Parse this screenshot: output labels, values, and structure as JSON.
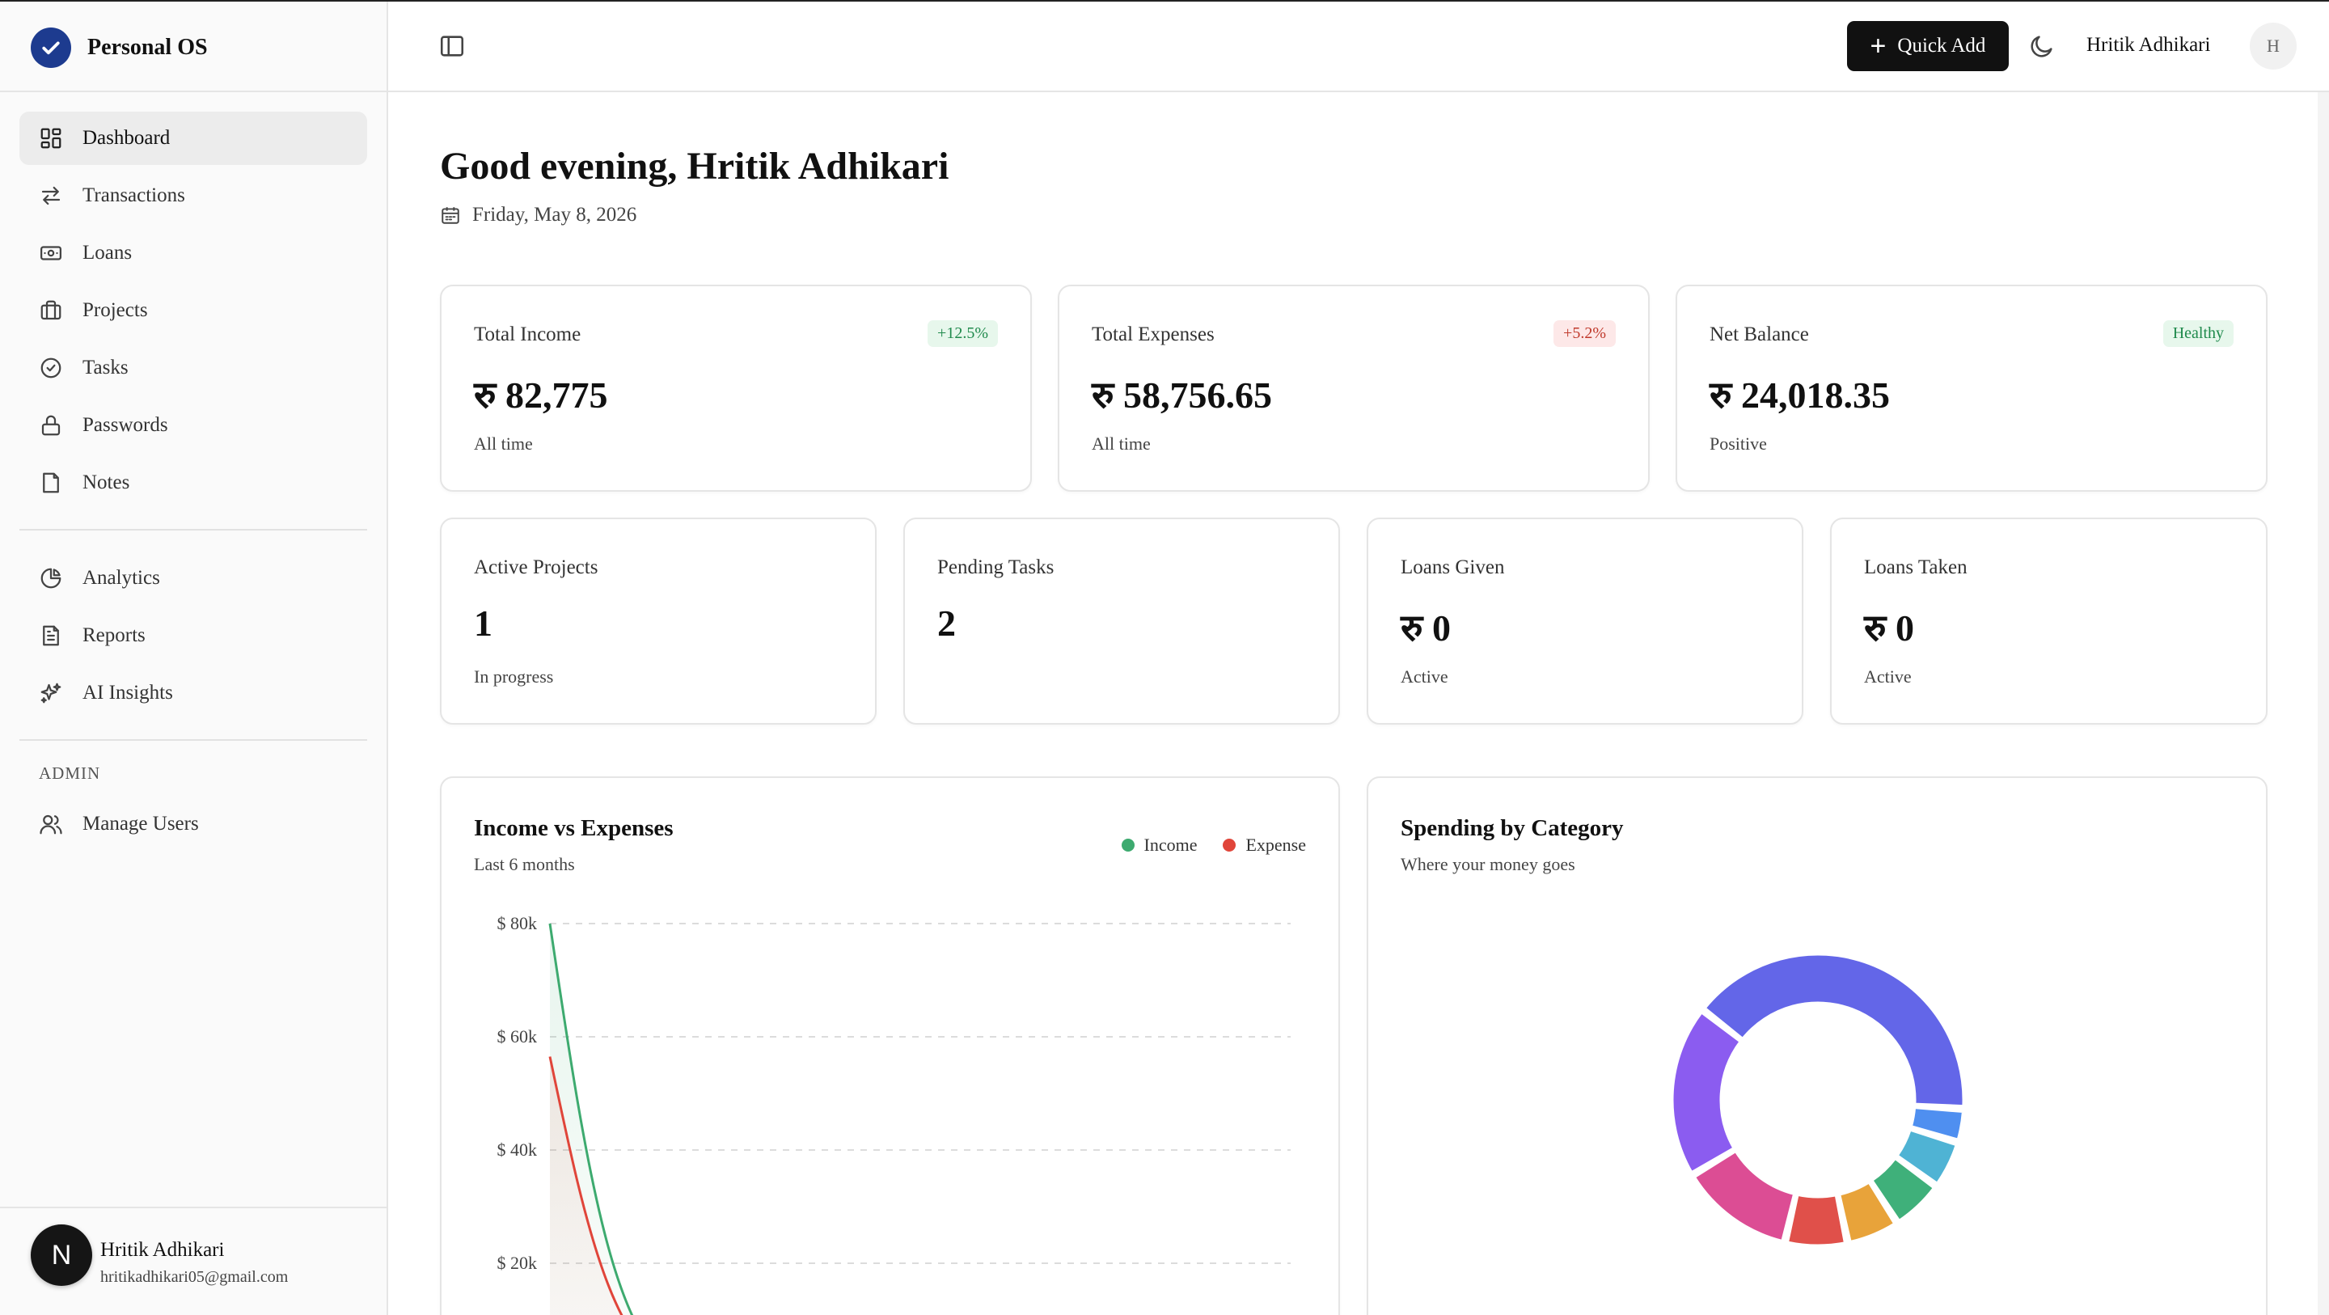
{
  "app": {
    "name": "Personal OS"
  },
  "sidebar": {
    "primary": [
      {
        "label": "Dashboard",
        "icon": "dashboard-icon",
        "active": true
      },
      {
        "label": "Transactions",
        "icon": "transactions-icon"
      },
      {
        "label": "Loans",
        "icon": "loans-icon"
      },
      {
        "label": "Projects",
        "icon": "projects-icon"
      },
      {
        "label": "Tasks",
        "icon": "tasks-icon"
      },
      {
        "label": "Passwords",
        "icon": "lock-icon"
      },
      {
        "label": "Notes",
        "icon": "notes-icon"
      }
    ],
    "secondary": [
      {
        "label": "Analytics",
        "icon": "pie-chart-icon"
      },
      {
        "label": "Reports",
        "icon": "report-icon"
      },
      {
        "label": "AI Insights",
        "icon": "sparkles-icon"
      }
    ],
    "admin_heading": "ADMIN",
    "admin": [
      {
        "label": "Manage Users",
        "icon": "users-icon"
      }
    ],
    "user": {
      "avatar_letter": "N",
      "name": "Hritik Adhikari",
      "email": "hritikadhikari05@gmail.com"
    }
  },
  "header": {
    "quick_add_label": "Quick Add",
    "user_name": "Hritik Adhikari",
    "avatar_letter": "H"
  },
  "main": {
    "greeting": "Good evening, Hritik Adhikari",
    "date": "Friday, May 8, 2026",
    "stats_top": [
      {
        "label": "Total Income",
        "value": "रु 82,775",
        "sub": "All time",
        "badge": "+12.5%",
        "badge_tone": "green"
      },
      {
        "label": "Total Expenses",
        "value": "रु 58,756.65",
        "sub": "All time",
        "badge": "+5.2%",
        "badge_tone": "red"
      },
      {
        "label": "Net Balance",
        "value": "रु 24,018.35",
        "sub": "Positive",
        "badge": "Healthy",
        "badge_tone": "green"
      }
    ],
    "stats_bottom": [
      {
        "label": "Active Projects",
        "value": "1",
        "sub": "In progress"
      },
      {
        "label": "Pending Tasks",
        "value": "2",
        "sub": ""
      },
      {
        "label": "Loans Given",
        "value": "रु 0",
        "sub": "Active"
      },
      {
        "label": "Loans Taken",
        "value": "रु 0",
        "sub": "Active"
      }
    ],
    "income_chart": {
      "title": "Income vs Expenses",
      "subtitle": "Last 6 months"
    },
    "spending_chart": {
      "title": "Spending by Category",
      "subtitle": "Where your money goes"
    }
  },
  "colors": {
    "income": "#3daa6f",
    "expense": "#e0453a",
    "donut": [
      "#6366e8",
      "#4f8ff0",
      "#4fb3d4",
      "#3fb07a",
      "#e8a33a",
      "#e0504a",
      "#dc4d94",
      "#8b5cf0"
    ]
  },
  "chart_data": [
    {
      "type": "line",
      "title": "Income vs Expenses",
      "subtitle": "Last 6 months",
      "y_ticks": [
        "$ 80k",
        "$ 60k",
        "$ 40k",
        "$ 20k"
      ],
      "ylim": [
        0,
        80000
      ],
      "legend": "top-right",
      "grid": true,
      "series": [
        {
          "name": "Income",
          "values": [
            80000,
            0,
            0,
            0,
            0,
            0
          ]
        },
        {
          "name": "Expense",
          "values": [
            56500,
            0,
            0,
            0,
            0,
            0
          ]
        }
      ]
    },
    {
      "type": "pie",
      "title": "Spending by Category",
      "subtitle": "Where your money goes",
      "values": [
        38,
        3.5,
        5,
        5.5,
        5.5,
        6.5,
        12,
        18
      ]
    }
  ]
}
